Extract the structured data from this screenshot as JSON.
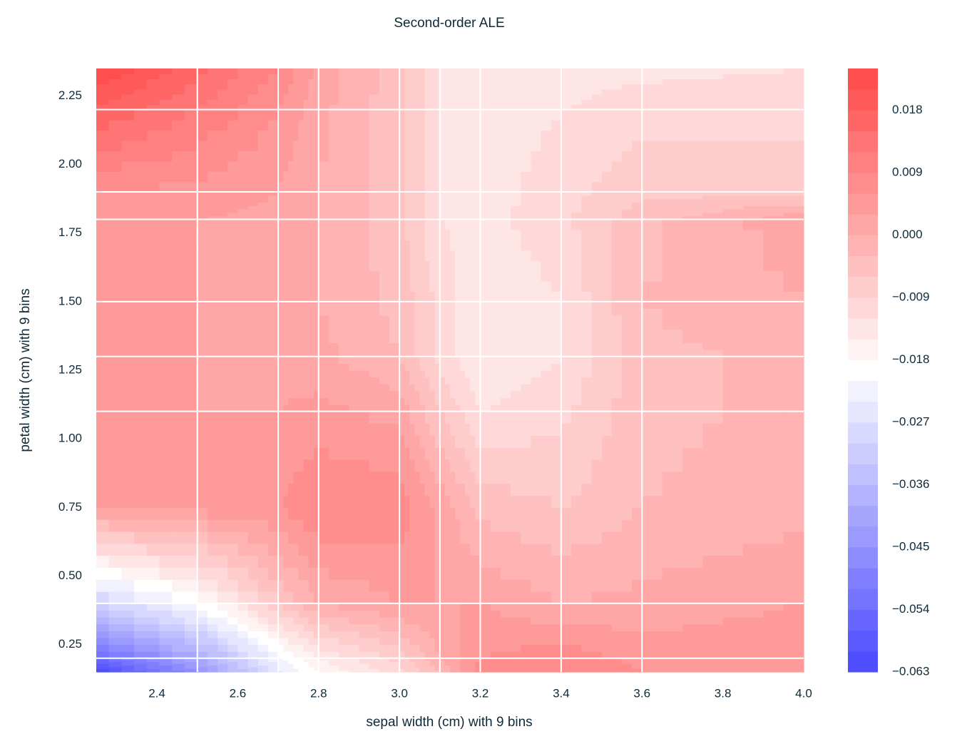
{
  "chart_data": {
    "type": "contour",
    "title": "Second-order ALE",
    "xlabel": "sepal width (cm) with 9 bins",
    "ylabel": "petal width (cm) with 9 bins",
    "xlim": [
      2.25,
      4.0
    ],
    "ylim": [
      0.15,
      2.35
    ],
    "xticks": [
      2.4,
      2.6,
      2.8,
      {
        "value": 3,
        "label": "3.0"
      },
      3.2,
      3.4,
      3.6,
      3.8,
      {
        "value": 4,
        "label": "4.0"
      }
    ],
    "yticks": [
      0.25,
      {
        "value": 0.5,
        "label": "0.50"
      },
      0.75,
      {
        "value": 1,
        "label": "1.00"
      },
      1.25,
      {
        "value": 1.5,
        "label": "1.50"
      },
      1.75,
      {
        "value": 2,
        "label": "2.00"
      },
      2.25
    ],
    "x_edges": [
      2.5,
      2.7,
      2.8,
      3.0,
      3.1,
      3.2,
      3.4,
      3.6
    ],
    "y_edges": [
      0.2,
      0.4,
      1.1,
      1.3,
      1.5,
      1.8,
      1.9,
      2.2
    ],
    "x": [
      2.25,
      2.5,
      2.7,
      2.8,
      3.0,
      3.1,
      3.2,
      3.4,
      3.6,
      4.0
    ],
    "y": [
      0.15,
      0.2,
      0.4,
      0.75,
      1.1,
      1.3,
      1.5,
      1.8,
      1.9,
      2.2,
      2.35
    ],
    "z": [
      [
        -0.063,
        -0.045,
        -0.025,
        -0.018,
        -0.01,
        -0.003,
        0.008,
        0.009,
        0.006,
        0.006
      ],
      [
        -0.055,
        -0.04,
        -0.022,
        -0.015,
        -0.008,
        0.0,
        0.006,
        0.008,
        0.005,
        0.005
      ],
      [
        -0.03,
        -0.02,
        -0.006,
        0.0,
        0.003,
        0.003,
        0.003,
        0.0,
        0.001,
        0.003
      ],
      [
        0.003,
        0.004,
        0.006,
        0.009,
        0.008,
        0.002,
        -0.004,
        -0.006,
        -0.003,
        -0.001
      ],
      [
        0.003,
        0.003,
        0.003,
        0.004,
        0.002,
        -0.006,
        -0.012,
        -0.01,
        -0.004,
        -0.002
      ],
      [
        0.003,
        0.003,
        0.002,
        0.001,
        -0.003,
        -0.01,
        -0.015,
        -0.012,
        -0.004,
        -0.002
      ],
      [
        0.005,
        0.003,
        0.002,
        0.0,
        -0.004,
        -0.01,
        -0.015,
        -0.012,
        -0.003,
        0.0
      ],
      [
        0.003,
        0.003,
        0.002,
        0.0,
        -0.005,
        -0.012,
        -0.013,
        -0.01,
        -0.004,
        0.002
      ],
      [
        0.006,
        0.005,
        0.003,
        0.0,
        -0.005,
        -0.012,
        -0.014,
        -0.01,
        -0.007,
        -0.007
      ],
      [
        0.018,
        0.012,
        0.006,
        0.001,
        -0.005,
        -0.012,
        -0.014,
        -0.012,
        -0.01,
        -0.01
      ],
      [
        0.024,
        0.016,
        0.009,
        0.002,
        -0.005,
        -0.012,
        -0.014,
        -0.014,
        -0.013,
        -0.012
      ]
    ],
    "colormap": "bwr",
    "clim": [
      -0.063,
      0.024
    ],
    "levels": 29,
    "cticks": [
      {
        "value": -0.063,
        "label": "−0.063"
      },
      {
        "value": -0.054,
        "label": "−0.054"
      },
      {
        "value": -0.045,
        "label": "−0.045"
      },
      {
        "value": -0.036,
        "label": "−0.036"
      },
      {
        "value": -0.027,
        "label": "−0.027"
      },
      {
        "value": -0.018,
        "label": "−0.018"
      },
      {
        "value": -0.009,
        "label": "−0.009"
      },
      {
        "value": 0,
        "label": "0.000"
      },
      0.009,
      0.018
    ]
  }
}
